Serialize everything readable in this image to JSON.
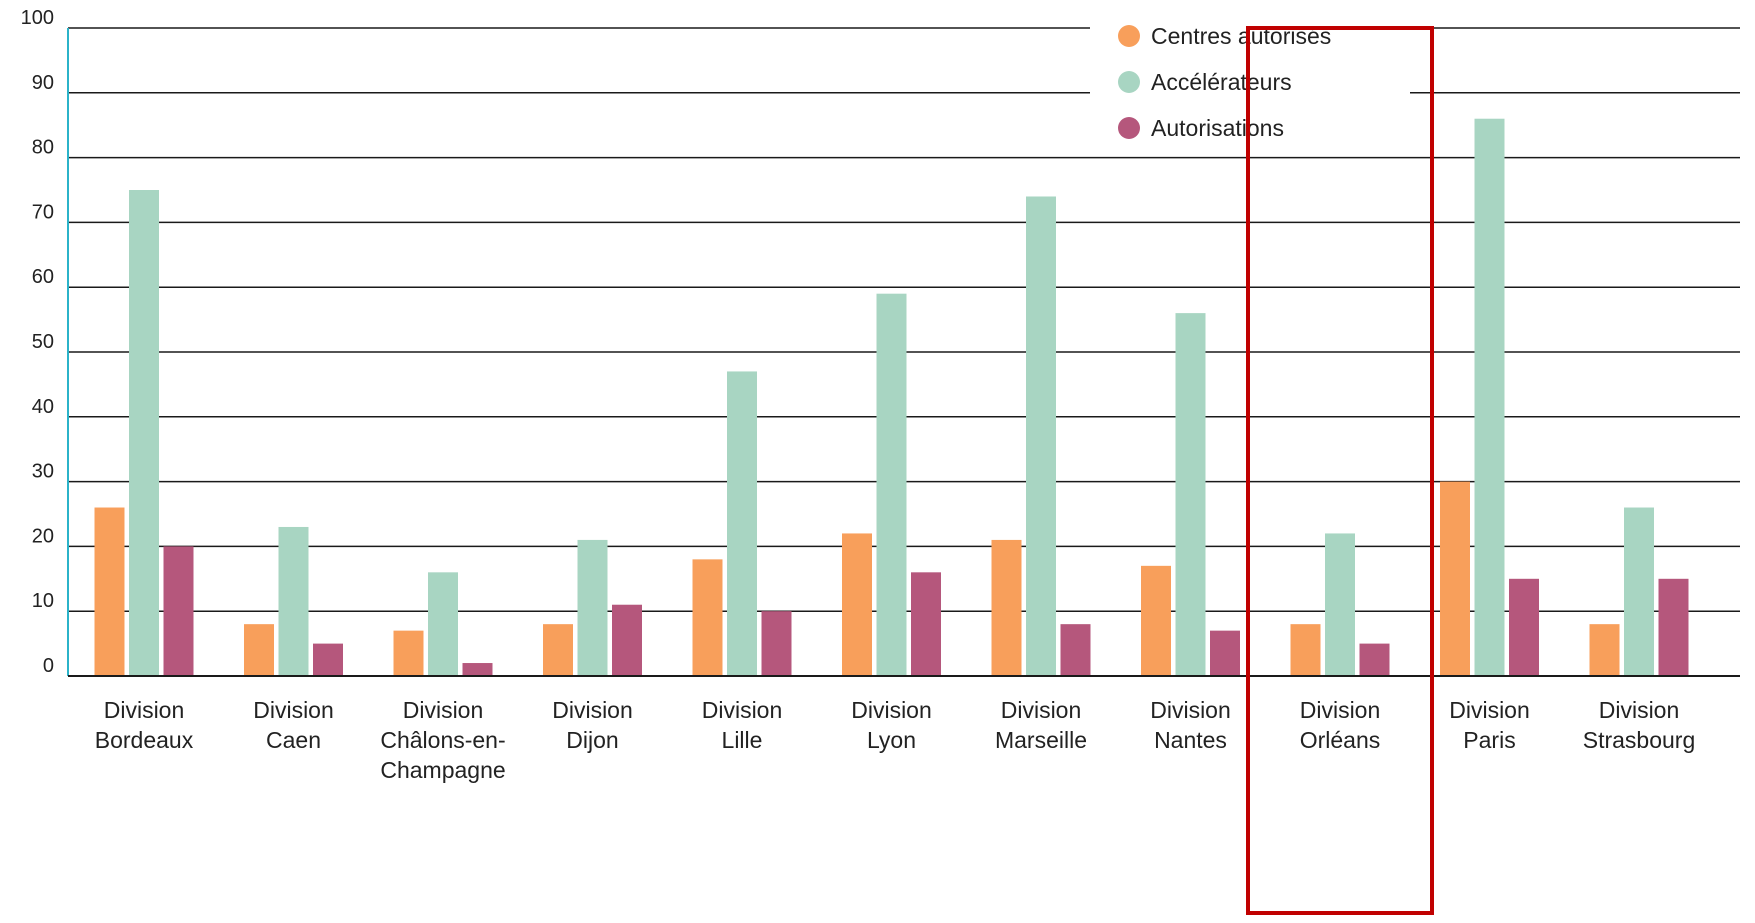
{
  "chart_data": {
    "type": "bar",
    "categories": [
      "Division Bordeaux",
      "Division Caen",
      "Division Châlons-en-Champagne",
      "Division Dijon",
      "Division Lille",
      "Division Lyon",
      "Division Marseille",
      "Division Nantes",
      "Division Orléans",
      "Division Paris",
      "Division Strasbourg"
    ],
    "category_lines": [
      [
        "Division",
        "Bordeaux"
      ],
      [
        "Division",
        "Caen"
      ],
      [
        "Division",
        "Châlons-en-",
        "Champagne"
      ],
      [
        "Division",
        "Dijon"
      ],
      [
        "Division",
        "Lille"
      ],
      [
        "Division",
        "Lyon"
      ],
      [
        "Division",
        "Marseille"
      ],
      [
        "Division",
        "Nantes"
      ],
      [
        "Division",
        "Orléans"
      ],
      [
        "Division",
        "Paris"
      ],
      [
        "Division",
        "Strasbourg"
      ]
    ],
    "series": [
      {
        "name": "Centres autorisés",
        "color": "#F89F5B",
        "values": [
          26,
          8,
          7,
          8,
          18,
          22,
          21,
          17,
          8,
          30,
          8
        ]
      },
      {
        "name": "Accélérateurs",
        "color": "#A8D5C2",
        "values": [
          75,
          23,
          16,
          21,
          47,
          59,
          74,
          56,
          22,
          86,
          26
        ]
      },
      {
        "name": "Autorisations",
        "color": "#B5577C",
        "values": [
          20,
          5,
          2,
          11,
          10,
          16,
          8,
          7,
          5,
          15,
          15
        ]
      }
    ],
    "yticks": [
      "0",
      "10",
      "20",
      "30",
      "40",
      "50",
      "60",
      "70",
      "80",
      "90",
      "100"
    ],
    "ylim": [
      0,
      100
    ],
    "grid": true,
    "legend": "top-center",
    "highlight_category": "Division Orléans",
    "highlight_color": "#C00000",
    "title": "",
    "xlabel": "",
    "ylabel": ""
  }
}
